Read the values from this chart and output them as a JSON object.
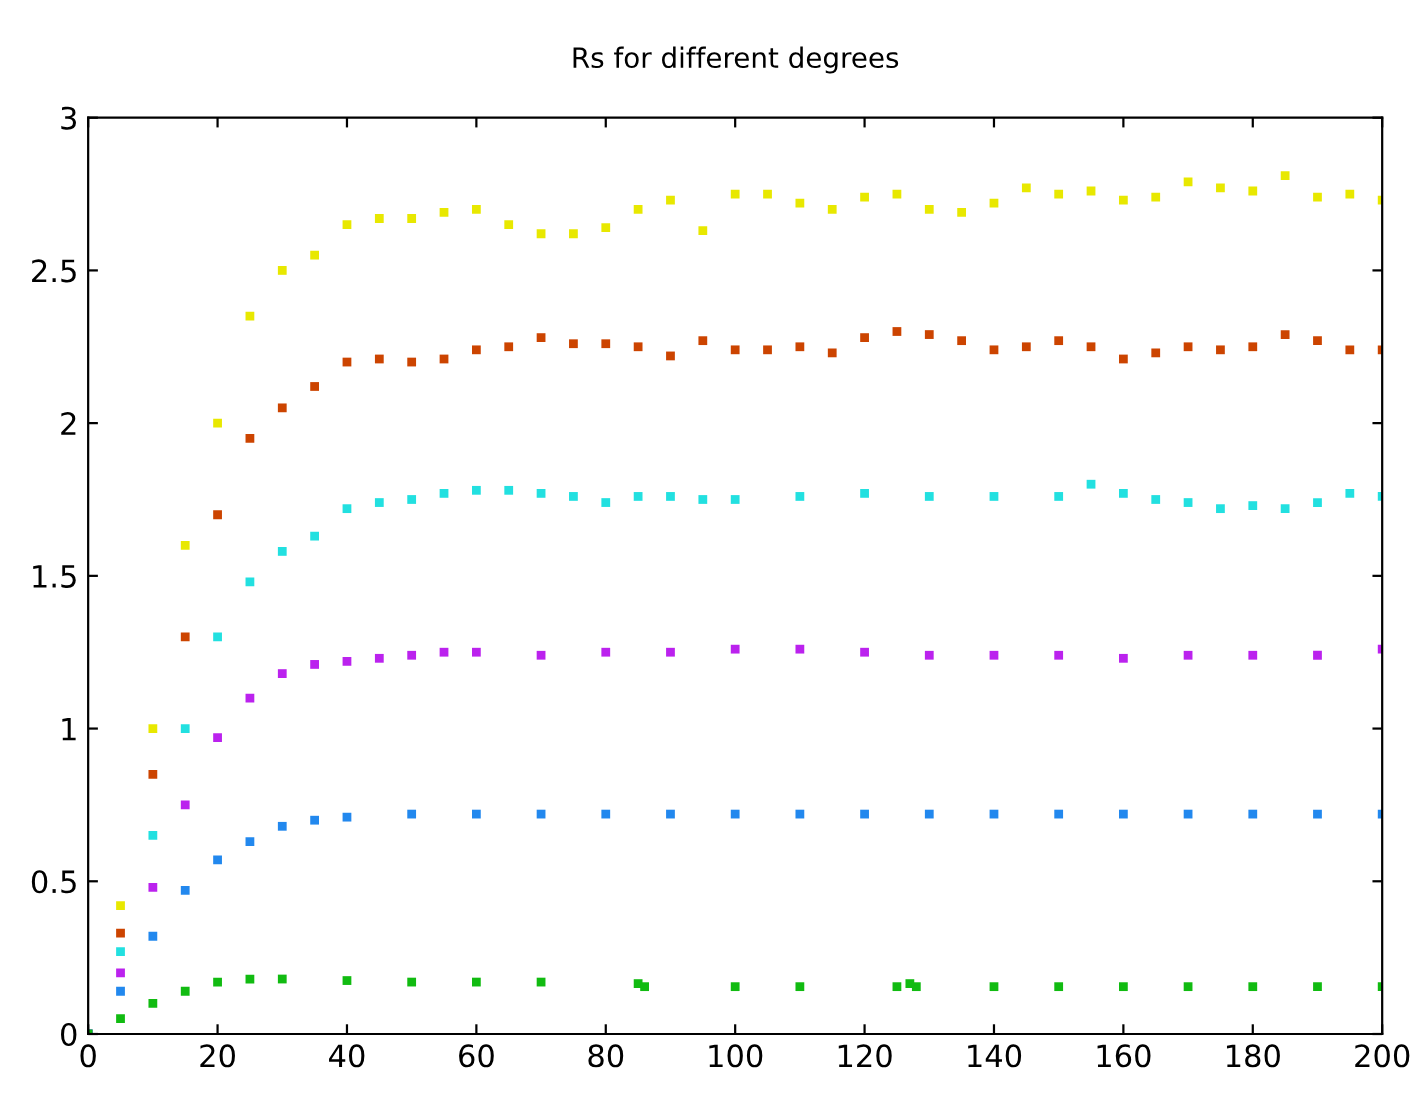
{
  "chart_data": {
    "type": "scatter",
    "title": "Rs for different degrees",
    "marker": "square",
    "grid": false,
    "legend": false,
    "xlim": [
      0,
      200
    ],
    "xticks": [
      0,
      20,
      40,
      60,
      80,
      100,
      120,
      140,
      160,
      180,
      200
    ],
    "ylim": [
      0,
      3
    ],
    "yticks": [
      0,
      0.5,
      1,
      1.5,
      2,
      2.5,
      3
    ],
    "series": [
      {
        "color": "#e8e800",
        "x": [
          5,
          10,
          15,
          20,
          25,
          30,
          35,
          40,
          45,
          50,
          55,
          60,
          65,
          70,
          75,
          80,
          85,
          90,
          95,
          100,
          105,
          110,
          115,
          120,
          125,
          130,
          135,
          140,
          145,
          150,
          155,
          160,
          165,
          170,
          175,
          180,
          185,
          190,
          195,
          200
        ],
        "values": [
          0.42,
          1.0,
          1.6,
          2.0,
          2.35,
          2.5,
          2.55,
          2.65,
          2.67,
          2.67,
          2.69,
          2.7,
          2.65,
          2.62,
          2.62,
          2.64,
          2.7,
          2.73,
          2.63,
          2.75,
          2.75,
          2.72,
          2.7,
          2.74,
          2.75,
          2.7,
          2.69,
          2.72,
          2.77,
          2.75,
          2.76,
          2.73,
          2.74,
          2.79,
          2.77,
          2.76,
          2.81,
          2.74,
          2.75,
          2.73
        ]
      },
      {
        "color": "#cc4400",
        "x": [
          5,
          10,
          15,
          20,
          25,
          30,
          35,
          40,
          45,
          50,
          55,
          60,
          65,
          70,
          75,
          80,
          85,
          90,
          95,
          100,
          105,
          110,
          115,
          120,
          125,
          130,
          135,
          140,
          145,
          150,
          155,
          160,
          165,
          170,
          175,
          180,
          185,
          190,
          195,
          200
        ],
        "values": [
          0.33,
          0.85,
          1.3,
          1.7,
          1.95,
          2.05,
          2.12,
          2.2,
          2.21,
          2.2,
          2.21,
          2.24,
          2.25,
          2.28,
          2.26,
          2.26,
          2.25,
          2.22,
          2.27,
          2.24,
          2.24,
          2.25,
          2.23,
          2.28,
          2.3,
          2.29,
          2.27,
          2.24,
          2.25,
          2.27,
          2.25,
          2.21,
          2.23,
          2.25,
          2.24,
          2.25,
          2.29,
          2.27,
          2.24,
          2.24
        ]
      },
      {
        "color": "#22e0e0",
        "x": [
          5,
          10,
          15,
          20,
          25,
          30,
          35,
          40,
          45,
          50,
          55,
          60,
          65,
          70,
          75,
          80,
          85,
          90,
          95,
          100,
          110,
          120,
          130,
          140,
          150,
          155,
          160,
          165,
          170,
          175,
          180,
          185,
          190,
          195,
          200
        ],
        "values": [
          0.27,
          0.65,
          1.0,
          1.3,
          1.48,
          1.58,
          1.63,
          1.72,
          1.74,
          1.75,
          1.77,
          1.78,
          1.78,
          1.77,
          1.76,
          1.74,
          1.76,
          1.76,
          1.75,
          1.75,
          1.76,
          1.77,
          1.76,
          1.76,
          1.76,
          1.8,
          1.77,
          1.75,
          1.74,
          1.72,
          1.73,
          1.72,
          1.74,
          1.77,
          1.76
        ]
      },
      {
        "color": "#bb22ee",
        "x": [
          0,
          5,
          10,
          15,
          20,
          25,
          30,
          35,
          40,
          45,
          50,
          55,
          60,
          70,
          80,
          90,
          100,
          110,
          120,
          130,
          140,
          150,
          160,
          170,
          180,
          190,
          200
        ],
        "values": [
          0,
          0.2,
          0.48,
          0.75,
          0.97,
          1.1,
          1.18,
          1.21,
          1.22,
          1.23,
          1.24,
          1.25,
          1.25,
          1.24,
          1.25,
          1.25,
          1.26,
          1.26,
          1.25,
          1.24,
          1.24,
          1.24,
          1.23,
          1.24,
          1.24,
          1.24,
          1.26
        ]
      },
      {
        "color": "#2288ee",
        "x": [
          0,
          5,
          10,
          15,
          20,
          25,
          30,
          35,
          40,
          50,
          60,
          70,
          80,
          90,
          100,
          110,
          120,
          130,
          140,
          150,
          160,
          170,
          180,
          190,
          200
        ],
        "values": [
          0,
          0.14,
          0.32,
          0.47,
          0.57,
          0.63,
          0.68,
          0.7,
          0.71,
          0.72,
          0.72,
          0.72,
          0.72,
          0.72,
          0.72,
          0.72,
          0.72,
          0.72,
          0.72,
          0.72,
          0.72,
          0.72,
          0.72,
          0.72,
          0.72
        ]
      },
      {
        "color": "#11bb11",
        "x": [
          0,
          5,
          10,
          15,
          20,
          25,
          30,
          40,
          50,
          60,
          70,
          85,
          86,
          100,
          110,
          125,
          127,
          128,
          140,
          150,
          160,
          170,
          180,
          190,
          200
        ],
        "values": [
          0,
          0.05,
          0.1,
          0.14,
          0.17,
          0.18,
          0.18,
          0.175,
          0.17,
          0.17,
          0.17,
          0.165,
          0.155,
          0.155,
          0.155,
          0.155,
          0.165,
          0.155,
          0.155,
          0.155,
          0.155,
          0.155,
          0.155,
          0.155,
          0.155
        ]
      }
    ]
  }
}
